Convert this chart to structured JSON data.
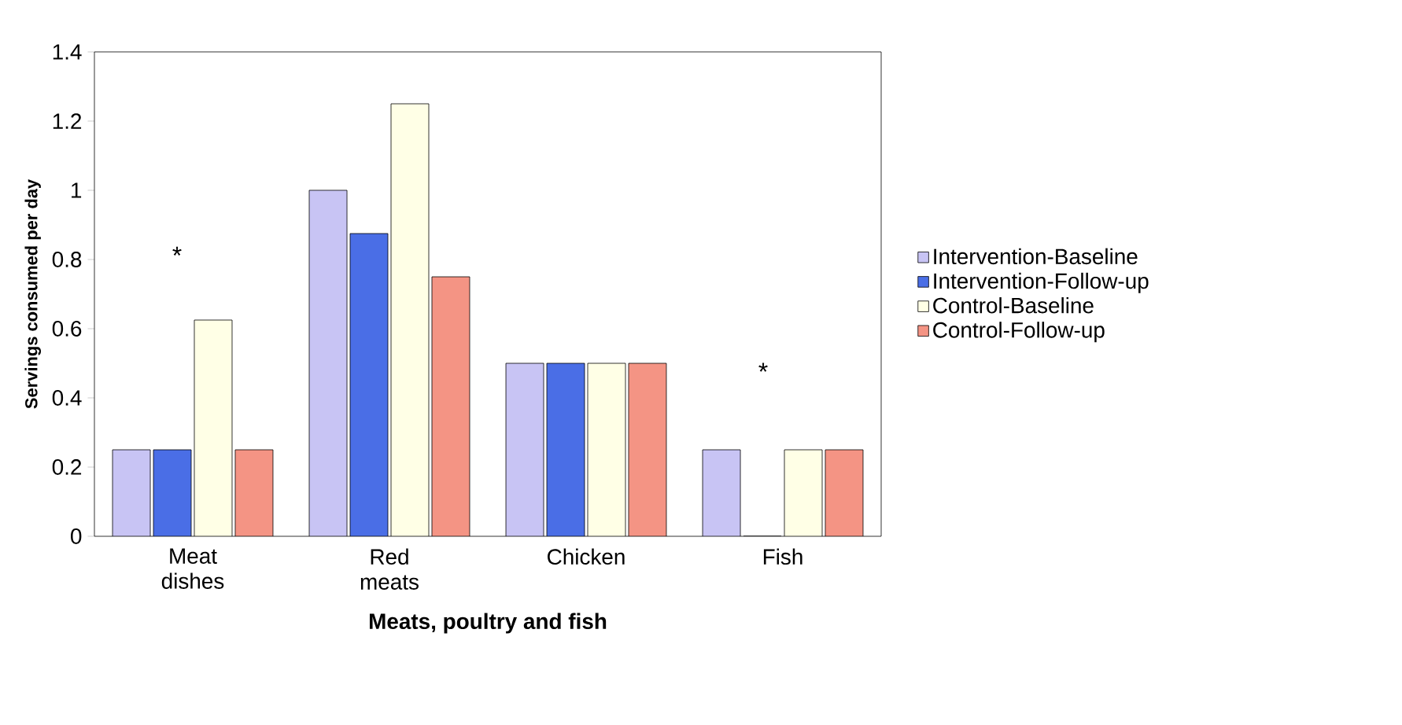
{
  "chart_data": {
    "type": "bar",
    "xlabel": "Meats, poultry and fish",
    "ylabel": "Servings consumed per day",
    "categories": [
      "Meat dishes",
      "Red meats",
      "Chicken",
      "Fish"
    ],
    "series": [
      {
        "name": "Intervention-Baseline",
        "color": "#c8c4f4",
        "values": [
          0.25,
          1.0,
          0.5,
          0.25
        ]
      },
      {
        "name": "Intervention-Follow-up",
        "color": "#4a6ee6",
        "values": [
          0.25,
          0.875,
          0.5,
          0
        ]
      },
      {
        "name": "Control-Baseline",
        "color": "#ffffe6",
        "values": [
          0.625,
          1.25,
          0.5,
          0.25
        ]
      },
      {
        "name": "Control-Follow-up",
        "color": "#f49484",
        "values": [
          0.25,
          0.75,
          0.5,
          0.25
        ]
      }
    ],
    "ylim": [
      0,
      1.4
    ],
    "yticks": [
      0,
      0.2,
      0.4,
      0.6,
      0.8,
      1,
      1.2,
      1.4
    ],
    "legend": "right",
    "annotations": [
      "*",
      "*"
    ]
  }
}
